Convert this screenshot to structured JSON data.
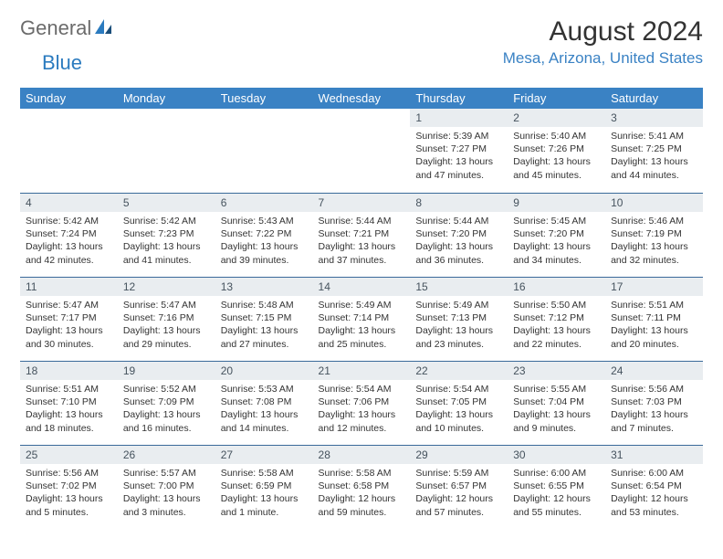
{
  "logo": {
    "general": "General",
    "blue": "Blue"
  },
  "title": "August 2024",
  "location": "Mesa, Arizona, United States",
  "colors": {
    "header_bg": "#3a82c4",
    "header_text": "#ffffff",
    "daynum_bg": "#e9edf0",
    "border": "#3a6a9a",
    "location_color": "#3a82c4",
    "logo_gray": "#6b6b6b",
    "logo_blue": "#2b7bbf"
  },
  "weekdays": [
    "Sunday",
    "Monday",
    "Tuesday",
    "Wednesday",
    "Thursday",
    "Friday",
    "Saturday"
  ],
  "grid": [
    [
      null,
      null,
      null,
      null,
      {
        "n": "1",
        "sr": "Sunrise: 5:39 AM",
        "ss": "Sunset: 7:27 PM",
        "d1": "Daylight: 13 hours",
        "d2": "and 47 minutes."
      },
      {
        "n": "2",
        "sr": "Sunrise: 5:40 AM",
        "ss": "Sunset: 7:26 PM",
        "d1": "Daylight: 13 hours",
        "d2": "and 45 minutes."
      },
      {
        "n": "3",
        "sr": "Sunrise: 5:41 AM",
        "ss": "Sunset: 7:25 PM",
        "d1": "Daylight: 13 hours",
        "d2": "and 44 minutes."
      }
    ],
    [
      {
        "n": "4",
        "sr": "Sunrise: 5:42 AM",
        "ss": "Sunset: 7:24 PM",
        "d1": "Daylight: 13 hours",
        "d2": "and 42 minutes."
      },
      {
        "n": "5",
        "sr": "Sunrise: 5:42 AM",
        "ss": "Sunset: 7:23 PM",
        "d1": "Daylight: 13 hours",
        "d2": "and 41 minutes."
      },
      {
        "n": "6",
        "sr": "Sunrise: 5:43 AM",
        "ss": "Sunset: 7:22 PM",
        "d1": "Daylight: 13 hours",
        "d2": "and 39 minutes."
      },
      {
        "n": "7",
        "sr": "Sunrise: 5:44 AM",
        "ss": "Sunset: 7:21 PM",
        "d1": "Daylight: 13 hours",
        "d2": "and 37 minutes."
      },
      {
        "n": "8",
        "sr": "Sunrise: 5:44 AM",
        "ss": "Sunset: 7:20 PM",
        "d1": "Daylight: 13 hours",
        "d2": "and 36 minutes."
      },
      {
        "n": "9",
        "sr": "Sunrise: 5:45 AM",
        "ss": "Sunset: 7:20 PM",
        "d1": "Daylight: 13 hours",
        "d2": "and 34 minutes."
      },
      {
        "n": "10",
        "sr": "Sunrise: 5:46 AM",
        "ss": "Sunset: 7:19 PM",
        "d1": "Daylight: 13 hours",
        "d2": "and 32 minutes."
      }
    ],
    [
      {
        "n": "11",
        "sr": "Sunrise: 5:47 AM",
        "ss": "Sunset: 7:17 PM",
        "d1": "Daylight: 13 hours",
        "d2": "and 30 minutes."
      },
      {
        "n": "12",
        "sr": "Sunrise: 5:47 AM",
        "ss": "Sunset: 7:16 PM",
        "d1": "Daylight: 13 hours",
        "d2": "and 29 minutes."
      },
      {
        "n": "13",
        "sr": "Sunrise: 5:48 AM",
        "ss": "Sunset: 7:15 PM",
        "d1": "Daylight: 13 hours",
        "d2": "and 27 minutes."
      },
      {
        "n": "14",
        "sr": "Sunrise: 5:49 AM",
        "ss": "Sunset: 7:14 PM",
        "d1": "Daylight: 13 hours",
        "d2": "and 25 minutes."
      },
      {
        "n": "15",
        "sr": "Sunrise: 5:49 AM",
        "ss": "Sunset: 7:13 PM",
        "d1": "Daylight: 13 hours",
        "d2": "and 23 minutes."
      },
      {
        "n": "16",
        "sr": "Sunrise: 5:50 AM",
        "ss": "Sunset: 7:12 PM",
        "d1": "Daylight: 13 hours",
        "d2": "and 22 minutes."
      },
      {
        "n": "17",
        "sr": "Sunrise: 5:51 AM",
        "ss": "Sunset: 7:11 PM",
        "d1": "Daylight: 13 hours",
        "d2": "and 20 minutes."
      }
    ],
    [
      {
        "n": "18",
        "sr": "Sunrise: 5:51 AM",
        "ss": "Sunset: 7:10 PM",
        "d1": "Daylight: 13 hours",
        "d2": "and 18 minutes."
      },
      {
        "n": "19",
        "sr": "Sunrise: 5:52 AM",
        "ss": "Sunset: 7:09 PM",
        "d1": "Daylight: 13 hours",
        "d2": "and 16 minutes."
      },
      {
        "n": "20",
        "sr": "Sunrise: 5:53 AM",
        "ss": "Sunset: 7:08 PM",
        "d1": "Daylight: 13 hours",
        "d2": "and 14 minutes."
      },
      {
        "n": "21",
        "sr": "Sunrise: 5:54 AM",
        "ss": "Sunset: 7:06 PM",
        "d1": "Daylight: 13 hours",
        "d2": "and 12 minutes."
      },
      {
        "n": "22",
        "sr": "Sunrise: 5:54 AM",
        "ss": "Sunset: 7:05 PM",
        "d1": "Daylight: 13 hours",
        "d2": "and 10 minutes."
      },
      {
        "n": "23",
        "sr": "Sunrise: 5:55 AM",
        "ss": "Sunset: 7:04 PM",
        "d1": "Daylight: 13 hours",
        "d2": "and 9 minutes."
      },
      {
        "n": "24",
        "sr": "Sunrise: 5:56 AM",
        "ss": "Sunset: 7:03 PM",
        "d1": "Daylight: 13 hours",
        "d2": "and 7 minutes."
      }
    ],
    [
      {
        "n": "25",
        "sr": "Sunrise: 5:56 AM",
        "ss": "Sunset: 7:02 PM",
        "d1": "Daylight: 13 hours",
        "d2": "and 5 minutes."
      },
      {
        "n": "26",
        "sr": "Sunrise: 5:57 AM",
        "ss": "Sunset: 7:00 PM",
        "d1": "Daylight: 13 hours",
        "d2": "and 3 minutes."
      },
      {
        "n": "27",
        "sr": "Sunrise: 5:58 AM",
        "ss": "Sunset: 6:59 PM",
        "d1": "Daylight: 13 hours",
        "d2": "and 1 minute."
      },
      {
        "n": "28",
        "sr": "Sunrise: 5:58 AM",
        "ss": "Sunset: 6:58 PM",
        "d1": "Daylight: 12 hours",
        "d2": "and 59 minutes."
      },
      {
        "n": "29",
        "sr": "Sunrise: 5:59 AM",
        "ss": "Sunset: 6:57 PM",
        "d1": "Daylight: 12 hours",
        "d2": "and 57 minutes."
      },
      {
        "n": "30",
        "sr": "Sunrise: 6:00 AM",
        "ss": "Sunset: 6:55 PM",
        "d1": "Daylight: 12 hours",
        "d2": "and 55 minutes."
      },
      {
        "n": "31",
        "sr": "Sunrise: 6:00 AM",
        "ss": "Sunset: 6:54 PM",
        "d1": "Daylight: 12 hours",
        "d2": "and 53 minutes."
      }
    ]
  ]
}
